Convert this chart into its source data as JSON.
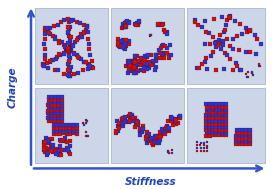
{
  "xlabel": "Stiffness",
  "ylabel": "Charge",
  "outer_bg": "#ffffff",
  "arrow_color": "#3355cc",
  "label_color": "#2244bb",
  "cell_bg": "#cdd5e8",
  "figsize": [
    2.74,
    1.89
  ],
  "dpi": 100,
  "xlabel_fontsize": 7.5,
  "ylabel_fontsize": 7.5,
  "label_style": "italic",
  "label_weight": "bold",
  "c1": "#cc1111",
  "c2": "#3333cc",
  "c3": "#000000",
  "marker_size": 2.5
}
